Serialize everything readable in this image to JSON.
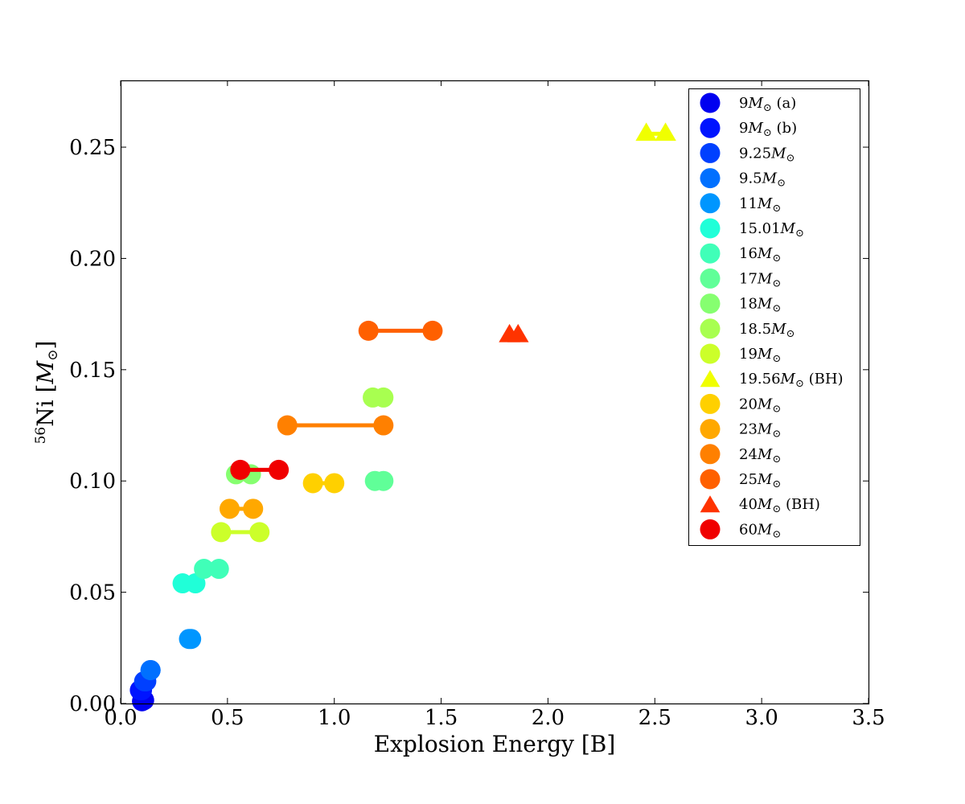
{
  "chart_data": {
    "type": "scatter",
    "title": "",
    "xlabel": "Explosion Energy [B]",
    "ylabel": {
      "sup": "56",
      "main": "Ni [",
      "var": "M",
      "sub": "⊙",
      "close": "]"
    },
    "xlim": [
      0.0,
      3.5
    ],
    "ylim": [
      0.0,
      0.28
    ],
    "xticks": [
      "0.0",
      "0.5",
      "1.0",
      "1.5",
      "2.0",
      "2.5",
      "3.0",
      "3.5"
    ],
    "yticks": [
      "0.00",
      "0.05",
      "0.10",
      "0.15",
      "0.20",
      "0.25"
    ],
    "grid": false,
    "legend_position": "top-right",
    "series": [
      {
        "name": "9M⊙ (a)",
        "mass": "9",
        "suffix": "(a)",
        "marker": "circle",
        "color": "#0000f0",
        "points": [
          [
            0.1,
            0.001
          ],
          [
            0.11,
            0.0015
          ]
        ],
        "connected": true
      },
      {
        "name": "9M⊙ (b)",
        "mass": "9",
        "suffix": "(b)",
        "marker": "circle",
        "color": "#0014ff",
        "points": [
          [
            0.09,
            0.006
          ],
          [
            0.1,
            0.006
          ]
        ],
        "connected": true
      },
      {
        "name": "9.25M⊙",
        "mass": "9.25",
        "suffix": "",
        "marker": "circle",
        "color": "#0040ff",
        "points": [
          [
            0.11,
            0.01
          ],
          [
            0.12,
            0.01
          ]
        ],
        "connected": true
      },
      {
        "name": "9.5M⊙",
        "mass": "9.5",
        "suffix": "",
        "marker": "circle",
        "color": "#0070ff",
        "points": [
          [
            0.14,
            0.015
          ],
          [
            0.14,
            0.015
          ]
        ],
        "connected": true
      },
      {
        "name": "11M⊙",
        "mass": "11",
        "suffix": "",
        "marker": "circle",
        "color": "#0096ff",
        "points": [
          [
            0.32,
            0.029
          ],
          [
            0.33,
            0.029
          ]
        ],
        "connected": true
      },
      {
        "name": "15.01M⊙",
        "mass": "15.01",
        "suffix": "",
        "marker": "circle",
        "color": "#20ffd8",
        "points": [
          [
            0.29,
            0.054
          ],
          [
            0.35,
            0.054
          ]
        ],
        "connected": true
      },
      {
        "name": "16M⊙",
        "mass": "16",
        "suffix": "",
        "marker": "circle",
        "color": "#40ffb8",
        "points": [
          [
            0.39,
            0.0605
          ],
          [
            0.46,
            0.0605
          ]
        ],
        "connected": true
      },
      {
        "name": "17M⊙",
        "mass": "17",
        "suffix": "",
        "marker": "circle",
        "color": "#60ff98",
        "points": [
          [
            1.19,
            0.1
          ],
          [
            1.23,
            0.1
          ]
        ],
        "connected": true
      },
      {
        "name": "18M⊙",
        "mass": "18",
        "suffix": "",
        "marker": "circle",
        "color": "#86ff70",
        "points": [
          [
            0.54,
            0.103
          ],
          [
            0.61,
            0.103
          ]
        ],
        "connected": true
      },
      {
        "name": "18.5M⊙",
        "mass": "18.5",
        "suffix": "",
        "marker": "circle",
        "color": "#a8ff50",
        "points": [
          [
            1.18,
            0.1375
          ],
          [
            1.23,
            0.1375
          ]
        ],
        "connected": true
      },
      {
        "name": "19M⊙",
        "mass": "19",
        "suffix": "",
        "marker": "circle",
        "color": "#ccff2a",
        "points": [
          [
            0.47,
            0.077
          ],
          [
            0.65,
            0.077
          ]
        ],
        "connected": true
      },
      {
        "name": "19.56M⊙ (BH)",
        "mass": "19.56",
        "suffix": "(BH)",
        "marker": "triangle",
        "color": "#f0ff00",
        "points": [
          [
            2.46,
            0.256
          ],
          [
            2.55,
            0.256
          ]
        ],
        "connected": true
      },
      {
        "name": "20M⊙",
        "mass": "20",
        "suffix": "",
        "marker": "circle",
        "color": "#ffd000",
        "points": [
          [
            0.9,
            0.099
          ],
          [
            1.0,
            0.099
          ]
        ],
        "connected": true
      },
      {
        "name": "23M⊙",
        "mass": "23",
        "suffix": "",
        "marker": "circle",
        "color": "#ffa800",
        "points": [
          [
            0.51,
            0.0875
          ],
          [
            0.62,
            0.0875
          ]
        ],
        "connected": true
      },
      {
        "name": "24M⊙",
        "mass": "24",
        "suffix": "",
        "marker": "circle",
        "color": "#ff8000",
        "points": [
          [
            0.78,
            0.125
          ],
          [
            1.23,
            0.125
          ]
        ],
        "connected": true
      },
      {
        "name": "25M⊙",
        "mass": "25",
        "suffix": "",
        "marker": "circle",
        "color": "#ff6000",
        "points": [
          [
            1.16,
            0.1675
          ],
          [
            1.46,
            0.1675
          ]
        ],
        "connected": true
      },
      {
        "name": "40M⊙ (BH)",
        "mass": "40",
        "suffix": "(BH)",
        "marker": "triangle",
        "color": "#ff3300",
        "points": [
          [
            1.82,
            0.1655
          ],
          [
            1.86,
            0.1655
          ]
        ],
        "connected": true
      },
      {
        "name": "60M⊙",
        "mass": "60",
        "suffix": "",
        "marker": "circle",
        "color": "#f00000",
        "points": [
          [
            0.56,
            0.105
          ],
          [
            0.74,
            0.105
          ]
        ],
        "connected": true
      }
    ]
  }
}
